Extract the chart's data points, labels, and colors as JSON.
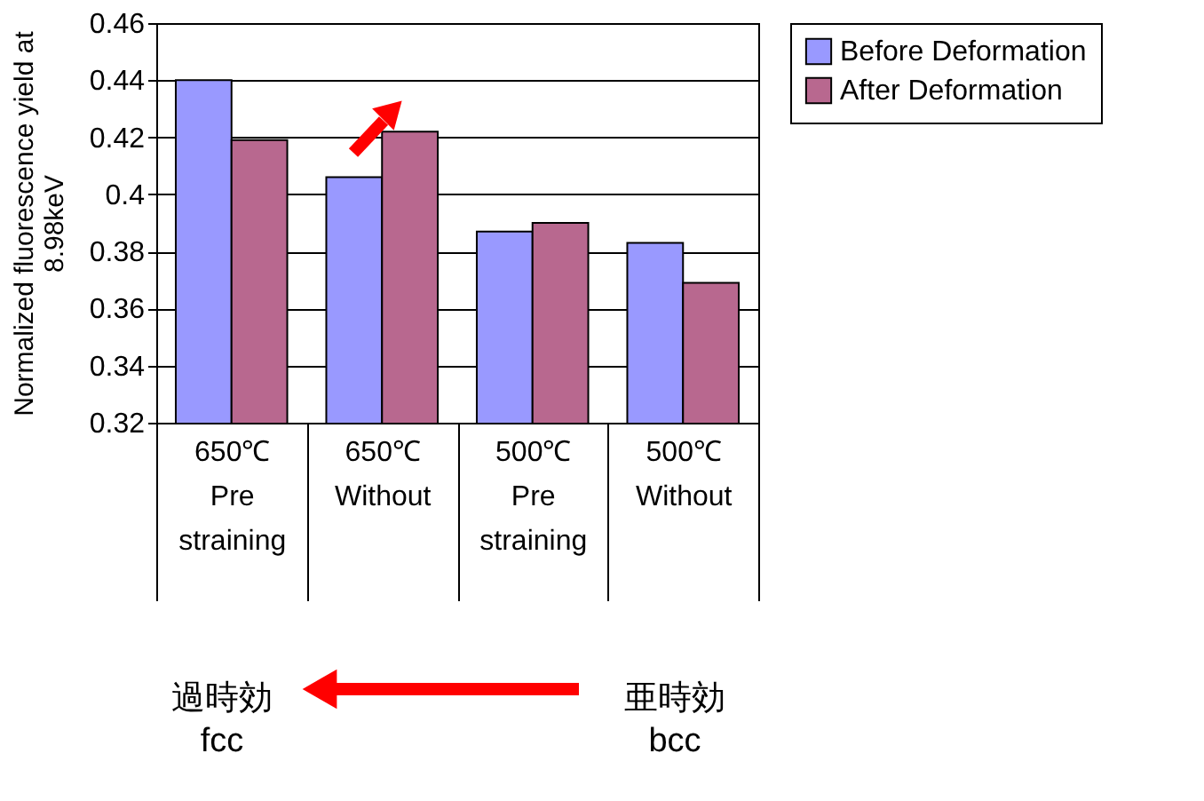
{
  "chart_data": {
    "type": "bar",
    "ylabel": "Normalized fluorescence yield at 8.98keV",
    "categories": [
      "650℃ Pre straining",
      "650℃ Without",
      "500℃ Pre straining",
      "500℃ Without"
    ],
    "series": [
      {
        "name": "Before Deformation",
        "color": "#9999ff",
        "values": [
          0.44,
          0.406,
          0.387,
          0.383
        ]
      },
      {
        "name": "After Deformation",
        "color": "#b8688f",
        "values": [
          0.419,
          0.422,
          0.39,
          0.369
        ]
      }
    ],
    "ylim": [
      0.32,
      0.46
    ],
    "yticks": [
      0.32,
      0.34,
      0.36,
      0.38,
      0.4,
      0.42,
      0.44,
      0.46
    ],
    "grid": "y",
    "legend": "right",
    "annotations": [
      "過時効 fcc",
      "亜時効 bcc"
    ]
  }
}
